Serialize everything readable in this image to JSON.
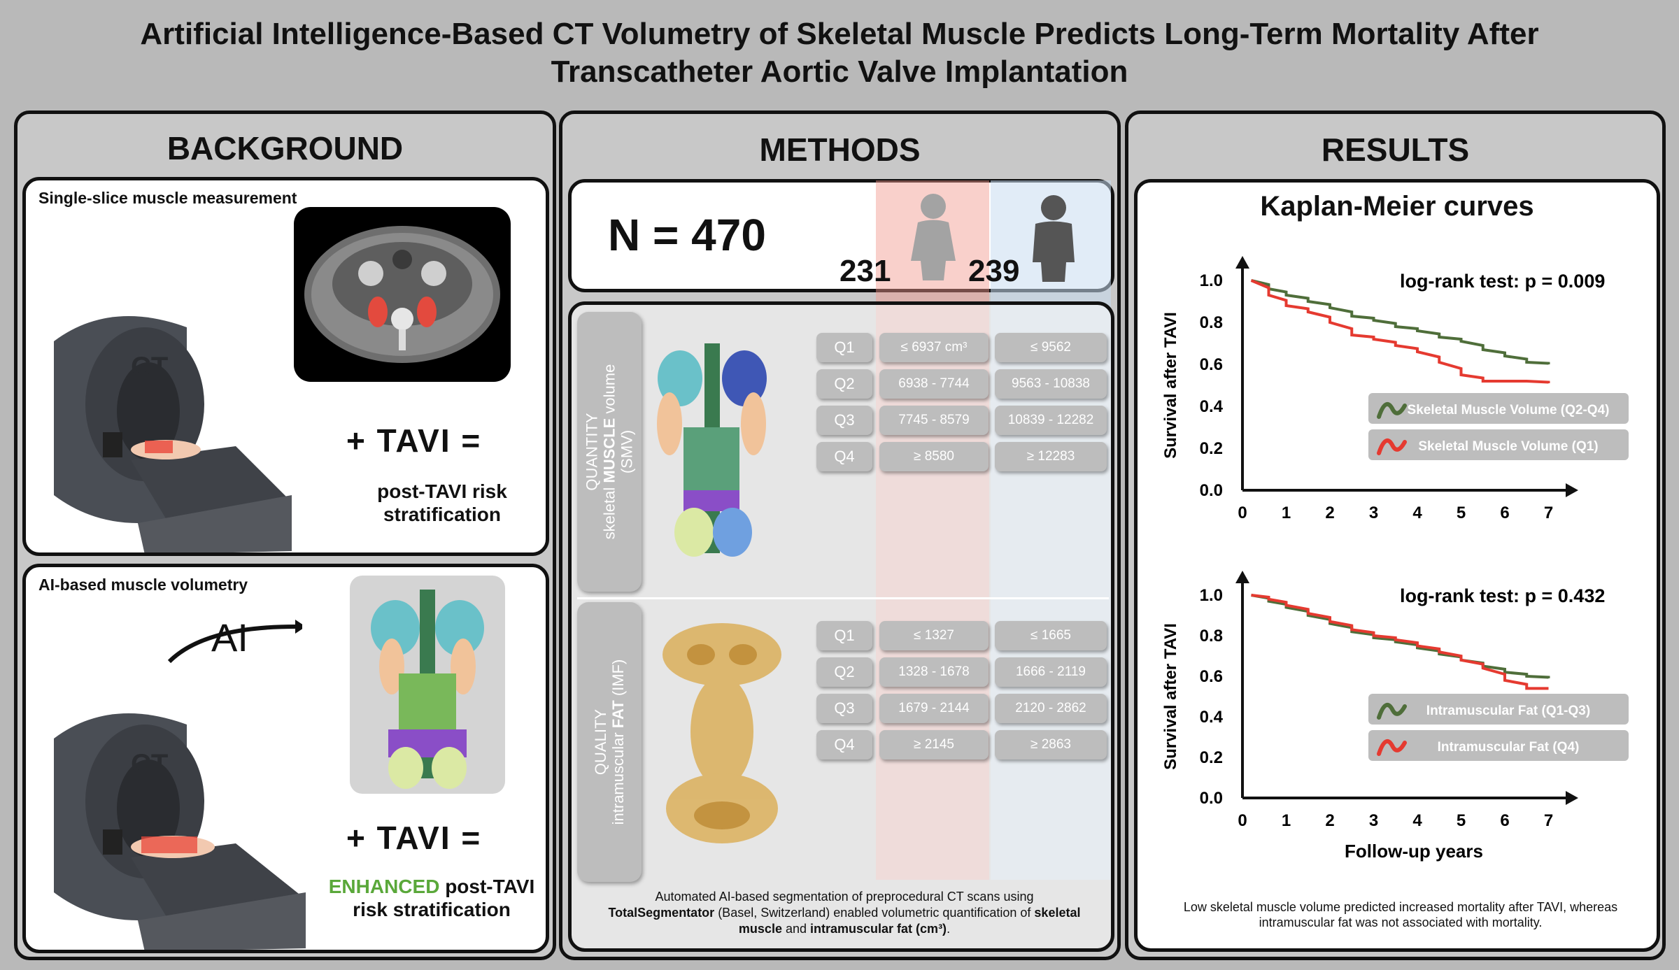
{
  "title": {
    "line1": "Artificial Intelligence-Based CT Volumetry of Skeletal Muscle Predicts Long-Term Mortality After",
    "line2": "Transcatheter Aortic Valve Implantation"
  },
  "background": {
    "heading": "BACKGROUND",
    "top": {
      "title": "Single-slice muscle measurement",
      "ct_label": "CT",
      "tavi": "+ TAVI  =",
      "outcome_line1": "post-TAVI risk",
      "outcome_line2": "stratification"
    },
    "bottom": {
      "title": "AI-based muscle volumetry",
      "ai_label": "AI",
      "ct_label": "CT",
      "tavi": "+ TAVI  =",
      "outcome_enhanced": "ENHANCED",
      "outcome_rest": " post-TAVI",
      "outcome_line2": "risk stratification"
    }
  },
  "methods": {
    "heading": "METHODS",
    "n_total": "N = 470",
    "n_female": "231",
    "n_male": "239",
    "smv_label": {
      "l1": "QUANTITY",
      "l2a": "skeletal ",
      "l2b": "MUSCLE",
      "l2c": " volume",
      "l3": "(SMV)"
    },
    "imf_label": {
      "l1": "QUALITY",
      "l2a": "intramuscular ",
      "l2b": "FAT",
      "l2c": " (IMF)"
    },
    "smv_rows": [
      {
        "q": "Q1",
        "female": "≤ 6937 cm³",
        "male": "≤ 9562"
      },
      {
        "q": "Q2",
        "female": "6938 - 7744",
        "male": "9563 - 10838"
      },
      {
        "q": "Q3",
        "female": "7745 - 8579",
        "male": "10839 - 12282"
      },
      {
        "q": "Q4",
        "female": "≥ 8580",
        "male": "≥ 12283"
      }
    ],
    "imf_rows": [
      {
        "q": "Q1",
        "female": "≤ 1327",
        "male": "≤ 1665"
      },
      {
        "q": "Q2",
        "female": "1328 - 1678",
        "male": "1666 - 2119"
      },
      {
        "q": "Q3",
        "female": "1679 - 2144",
        "male": "2120 - 2862"
      },
      {
        "q": "Q4",
        "female": "≥ 2145",
        "male": "≥ 2863"
      }
    ],
    "caption": {
      "p1": "Automated AI-based segmentation of preprocedural CT scans using",
      "p2b": "TotalSegmentator",
      "p2": " (Basel, Switzerland) enabled volumetric quantification of ",
      "p2c": "skeletal",
      "p3b": "muscle",
      "p3": " and ",
      "p3c": "intramuscular fat (cm³)",
      "p3d": "."
    }
  },
  "results": {
    "heading": "RESULTS",
    "km_title": "Kaplan-Meier curves",
    "caption_l1": "Low skeletal muscle volume predicted increased mortality after TAVI, whereas",
    "caption_l2": "intramuscular fat was not associated with mortality."
  },
  "colors": {
    "green": "#4f6e3a",
    "red": "#e53a30",
    "enhanced": "#5aa83a",
    "female_col": "#f1968c",
    "male_col": "#c8dcf0"
  },
  "chart_data": [
    {
      "type": "line",
      "title": "",
      "annotation": "log-rank test: p = 0.009",
      "xlabel": "",
      "ylabel": "Survival after TAVI",
      "xlim": [
        0,
        7.2
      ],
      "ylim": [
        0,
        1.0
      ],
      "x_ticks": [
        "0",
        "1",
        "2",
        "3",
        "4",
        "5",
        "6",
        "7"
      ],
      "y_ticks": [
        "0.0",
        "0.2",
        "0.4",
        "0.6",
        "0.8",
        "1.0"
      ],
      "legend_position": "right",
      "series": [
        {
          "name": "Skeletal Muscle Volume (Q2-Q4)",
          "color": "#4f6e3a",
          "x": [
            0.2,
            0.6,
            1.0,
            1.5,
            2.0,
            2.5,
            3.0,
            3.5,
            4.0,
            4.5,
            5.0,
            5.5,
            6.0,
            6.5,
            7.0
          ],
          "y": [
            1.0,
            0.96,
            0.93,
            0.9,
            0.87,
            0.83,
            0.81,
            0.78,
            0.76,
            0.73,
            0.71,
            0.67,
            0.64,
            0.61,
            0.6
          ]
        },
        {
          "name": "Skeletal Muscle Volume (Q1)",
          "color": "#e53a30",
          "x": [
            0.2,
            0.6,
            1.0,
            1.5,
            2.0,
            2.5,
            3.0,
            3.5,
            4.0,
            4.5,
            5.0,
            5.5,
            6.0,
            6.5,
            7.0
          ],
          "y": [
            1.0,
            0.93,
            0.88,
            0.85,
            0.8,
            0.74,
            0.72,
            0.69,
            0.66,
            0.61,
            0.55,
            0.52,
            0.52,
            0.52,
            0.51
          ]
        }
      ]
    },
    {
      "type": "line",
      "title": "",
      "annotation": "log-rank test: p = 0.432",
      "xlabel": "Follow-up years",
      "ylabel": "Survival after TAVI",
      "xlim": [
        0,
        7.2
      ],
      "ylim": [
        0,
        1.0
      ],
      "x_ticks": [
        "0",
        "1",
        "2",
        "3",
        "4",
        "5",
        "6",
        "7"
      ],
      "y_ticks": [
        "0.0",
        "0.2",
        "0.4",
        "0.6",
        "0.8",
        "1.0"
      ],
      "legend_position": "right",
      "series": [
        {
          "name": "Intramuscular Fat (Q1-Q3)",
          "color": "#4f6e3a",
          "x": [
            0.2,
            0.6,
            1.0,
            1.5,
            2.0,
            2.5,
            3.0,
            3.5,
            4.0,
            4.5,
            5.0,
            5.5,
            6.0,
            6.5,
            7.0
          ],
          "y": [
            1.0,
            0.97,
            0.94,
            0.9,
            0.86,
            0.82,
            0.79,
            0.77,
            0.74,
            0.71,
            0.68,
            0.65,
            0.62,
            0.6,
            0.59
          ]
        },
        {
          "name": "Intramuscular Fat (Q4)",
          "color": "#e53a30",
          "x": [
            0.2,
            0.6,
            1.0,
            1.5,
            2.0,
            2.5,
            3.0,
            3.5,
            4.0,
            4.5,
            5.0,
            5.5,
            6.0,
            6.5,
            7.0
          ],
          "y": [
            1.0,
            0.98,
            0.95,
            0.91,
            0.87,
            0.83,
            0.8,
            0.78,
            0.75,
            0.72,
            0.68,
            0.64,
            0.58,
            0.54,
            0.54
          ]
        }
      ]
    }
  ]
}
